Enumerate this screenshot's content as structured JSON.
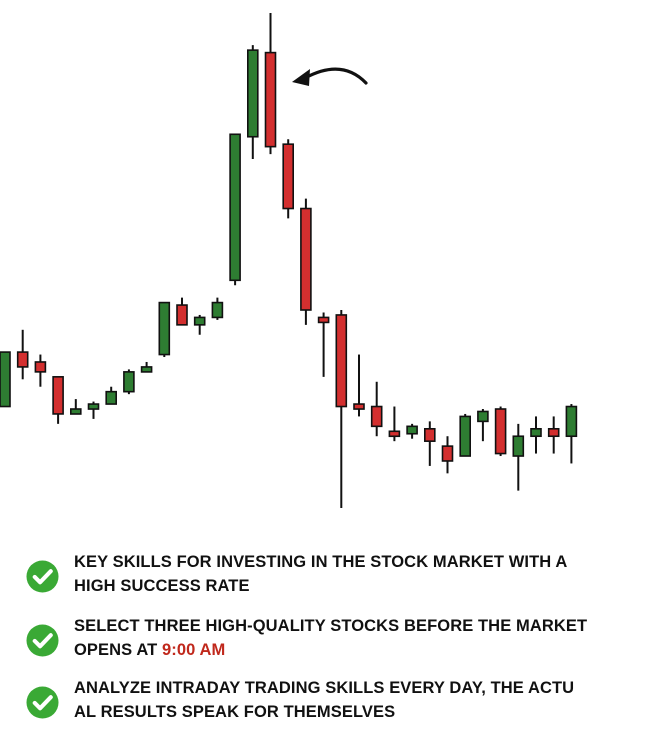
{
  "colors": {
    "bullish": "#2e7d32",
    "bearish": "#d32f2f",
    "check": "#3aa935",
    "highlight": "#c0281c",
    "text": "#111111"
  },
  "chart_data": {
    "type": "candlestick",
    "title": "",
    "xlabel": "",
    "ylabel": "",
    "axes_visible": false,
    "grid": false,
    "ylim": [
      0,
      100
    ],
    "annotation": {
      "type": "arrow",
      "points_to_candle": 15
    },
    "series": [
      {
        "o": 20.5,
        "h": 31.5,
        "l": 20.5,
        "c": 31.5
      },
      {
        "o": 31.5,
        "h": 36.0,
        "l": 26.0,
        "c": 28.5
      },
      {
        "o": 29.5,
        "h": 31.0,
        "l": 24.5,
        "c": 27.5
      },
      {
        "o": 26.5,
        "h": 26.5,
        "l": 17.0,
        "c": 19.0
      },
      {
        "o": 19.0,
        "h": 22.0,
        "l": 19.0,
        "c": 20.0
      },
      {
        "o": 20.5,
        "h": 21.5,
        "l": 18.0,
        "c": 21.0
      },
      {
        "o": 21.0,
        "h": 24.5,
        "l": 21.0,
        "c": 23.5
      },
      {
        "o": 23.5,
        "h": 28.0,
        "l": 23.0,
        "c": 27.5
      },
      {
        "o": 28.5,
        "h": 29.5,
        "l": 28.0,
        "c": 28.5
      },
      {
        "o": 31.0,
        "h": 41.5,
        "l": 30.5,
        "c": 41.5
      },
      {
        "o": 41.0,
        "h": 42.5,
        "l": 37.0,
        "c": 37.0
      },
      {
        "o": 37.0,
        "h": 39.0,
        "l": 35.0,
        "c": 38.5
      },
      {
        "o": 38.5,
        "h": 42.5,
        "l": 38.0,
        "c": 41.5
      },
      {
        "o": 46.0,
        "h": 75.5,
        "l": 45.0,
        "c": 75.5
      },
      {
        "o": 75.0,
        "h": 93.5,
        "l": 70.5,
        "c": 92.5
      },
      {
        "o": 92.0,
        "h": 100.0,
        "l": 71.5,
        "c": 73.0
      },
      {
        "o": 73.5,
        "h": 74.5,
        "l": 58.5,
        "c": 60.5
      },
      {
        "o": 60.5,
        "h": 62.5,
        "l": 37.0,
        "c": 40.0
      },
      {
        "o": 38.5,
        "h": 39.5,
        "l": 26.5,
        "c": 38.0
      },
      {
        "o": 39.0,
        "h": 40.0,
        "l": 0.0,
        "c": 20.5
      },
      {
        "o": 21.0,
        "h": 31.0,
        "l": 18.5,
        "c": 20.5
      },
      {
        "o": 20.5,
        "h": 25.5,
        "l": 14.5,
        "c": 16.5
      },
      {
        "o": 15.5,
        "h": 20.5,
        "l": 13.5,
        "c": 15.0
      },
      {
        "o": 15.0,
        "h": 17.0,
        "l": 14.0,
        "c": 16.5
      },
      {
        "o": 16.0,
        "h": 17.5,
        "l": 8.5,
        "c": 13.5
      },
      {
        "o": 12.5,
        "h": 14.5,
        "l": 7.0,
        "c": 9.5
      },
      {
        "o": 10.5,
        "h": 19.0,
        "l": 10.5,
        "c": 18.5
      },
      {
        "o": 17.5,
        "h": 20.0,
        "l": 13.5,
        "c": 19.5
      },
      {
        "o": 20.0,
        "h": 20.5,
        "l": 10.5,
        "c": 11.0
      },
      {
        "o": 10.5,
        "h": 17.0,
        "l": 3.5,
        "c": 14.5
      },
      {
        "o": 14.5,
        "h": 18.5,
        "l": 11.0,
        "c": 16.0
      },
      {
        "o": 16.0,
        "h": 18.5,
        "l": 11.0,
        "c": 14.5
      },
      {
        "o": 14.5,
        "h": 21.0,
        "l": 9.0,
        "c": 20.5
      }
    ]
  },
  "bullets": [
    {
      "icon": "check-circle-icon",
      "text_a": "KEY SKILLS FOR INVESTING IN THE STOCK MARKET WITH A",
      "text_b": "HIGH SUCCESS RATE"
    },
    {
      "icon": "check-circle-icon",
      "text_a": "SELECT THREE HIGH-QUALITY STOCKS BEFORE THE MARKET",
      "text_b_prefix": "OPENS AT ",
      "text_b_highlight": "9:00 AM"
    },
    {
      "icon": "check-circle-icon",
      "text_a": "ANALYZE INTRADAY TRADING SKILLS EVERY DAY, THE ACTU",
      "text_b": "AL RESULTS SPEAK FOR THEMSELVES"
    }
  ]
}
